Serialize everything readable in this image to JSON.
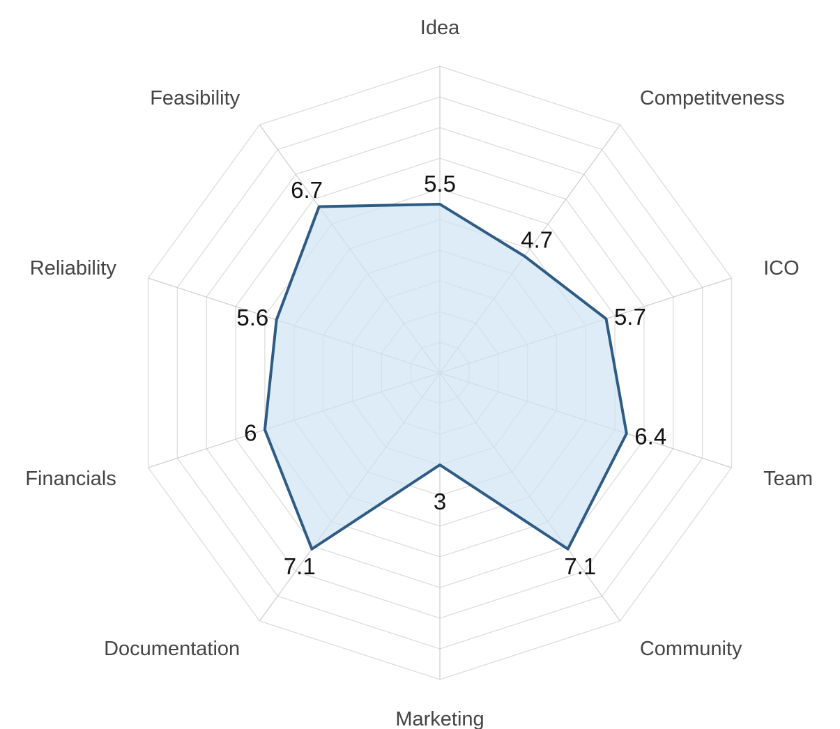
{
  "chart_data": {
    "type": "radar",
    "categories": [
      "Idea",
      "Competitveness",
      "ICO",
      "Team",
      "Community",
      "Marketing",
      "Documentation",
      "Financials",
      "Reliability",
      "Feasibility"
    ],
    "series": [
      {
        "values": [
          5.5,
          4.7,
          5.7,
          6.4,
          7.1,
          3,
          7.1,
          6,
          5.6,
          6.7
        ]
      }
    ],
    "range": [
      0,
      10
    ],
    "grid": true,
    "colors": {
      "line": "#2e5b84",
      "fill": "#cfe4f3",
      "grid": "#dcdcdc"
    }
  }
}
